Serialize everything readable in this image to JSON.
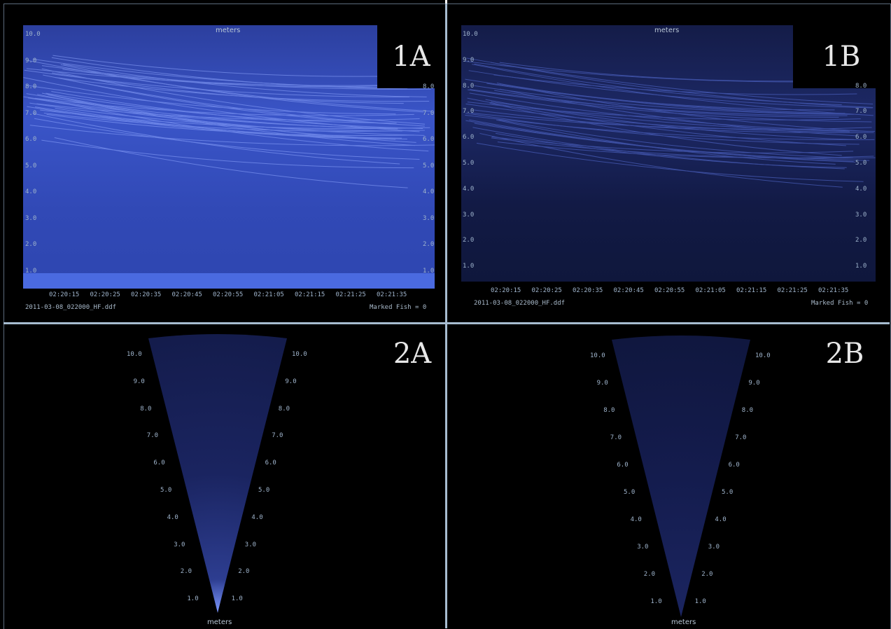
{
  "panels": {
    "p1a": {
      "label": "1A",
      "units_label": "meters",
      "file": "2011-03-08_022000_HF.ddf",
      "marked": "Marked Fish = 0",
      "y_ticks_left": [
        "10.0",
        "9.0",
        "8.0",
        "7.0",
        "6.0",
        "5.0",
        "4.0",
        "3.0",
        "2.0",
        "1.0"
      ],
      "y_ticks_right": [
        "8.0",
        "7.0",
        "6.0",
        "5.0",
        "4.0",
        "3.0",
        "2.0",
        "1.0"
      ]
    },
    "p1b": {
      "label": "1B",
      "units_label": "meters",
      "file": "2011-03-08_022000_HF.ddf",
      "marked": "Marked Fish = 0",
      "y_ticks_left": [
        "10.0",
        "9.0",
        "8.0",
        "7.0",
        "6.0",
        "5.0",
        "4.0",
        "3.0",
        "2.0",
        "1.0"
      ],
      "y_ticks_right": [
        "8.0",
        "7.0",
        "6.0",
        "5.0",
        "4.0",
        "3.0",
        "2.0",
        "1.0"
      ]
    },
    "p2a": {
      "label": "2A",
      "units_label": "meters"
    },
    "p2b": {
      "label": "2B",
      "units_label": "meters"
    }
  },
  "time_ticks": [
    "02:20:15",
    "02:20:25",
    "02:20:35",
    "02:20:45",
    "02:20:55",
    "02:21:05",
    "02:21:15",
    "02:21:25",
    "02:21:35"
  ],
  "range_ticks": [
    "10.0",
    "9.0",
    "8.0",
    "7.0",
    "6.0",
    "5.0",
    "4.0",
    "3.0",
    "2.0",
    "1.0"
  ],
  "colors": {
    "echogram_bright": "#3a56d0",
    "echogram_dim": "#1a2a6e",
    "divider": "#a7bcd0"
  }
}
